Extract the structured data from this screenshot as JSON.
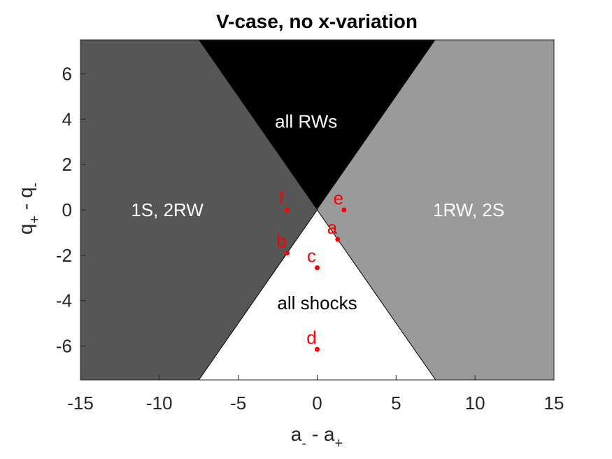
{
  "chart_data": {
    "type": "region",
    "title": "V-case, no x-variation",
    "xlabel": {
      "main": "a",
      "sub1": "-",
      "mid": " - a",
      "sub2": "+"
    },
    "ylabel": {
      "main": "q",
      "sub1": "+",
      "mid": " - q",
      "sub2": "-"
    },
    "xlim": [
      -15,
      15
    ],
    "ylim": [
      -7.5,
      7.5
    ],
    "xticks": [
      -15,
      -10,
      -5,
      0,
      5,
      10,
      15
    ],
    "yticks": [
      -6,
      -4,
      -2,
      0,
      2,
      4,
      6
    ],
    "regions": [
      {
        "label": "1S, 2RW",
        "label_at": [
          -9.5,
          0
        ],
        "label_color": "#ffffff",
        "fill": "#565656",
        "polygon": [
          [
            -15,
            7.5
          ],
          [
            -7.5,
            7.5
          ],
          [
            0,
            0
          ],
          [
            -7.5,
            -7.5
          ],
          [
            -15,
            -7.5
          ]
        ]
      },
      {
        "label": "all RWs",
        "label_at": [
          -0.7,
          3.9
        ],
        "label_color": "#ffffff",
        "fill": "#000000",
        "polygon": [
          [
            -7.5,
            7.5
          ],
          [
            7.5,
            7.5
          ],
          [
            0,
            0
          ]
        ]
      },
      {
        "label": "1RW, 2S",
        "label_at": [
          9.6,
          0
        ],
        "label_color": "#ffffff",
        "fill": "#9a9a9a",
        "polygon": [
          [
            7.5,
            7.5
          ],
          [
            15,
            7.5
          ],
          [
            15,
            -7.5
          ],
          [
            7.5,
            -7.5
          ],
          [
            0,
            0
          ]
        ]
      },
      {
        "label": "all shocks",
        "label_at": [
          0,
          -4.1
        ],
        "label_color": "#000000",
        "fill": "#ffffff",
        "polygon": [
          [
            0,
            0
          ],
          [
            7.5,
            -7.5
          ],
          [
            -7.5,
            -7.5
          ]
        ]
      }
    ],
    "points": [
      {
        "label": "a",
        "x": 1.3,
        "y": -1.3
      },
      {
        "label": "b",
        "x": -1.9,
        "y": -1.9
      },
      {
        "label": "c",
        "x": 0.0,
        "y": -2.55
      },
      {
        "label": "d",
        "x": 0.0,
        "y": -6.15
      },
      {
        "label": "e",
        "x": 1.7,
        "y": 0.0
      },
      {
        "label": "f",
        "x": -1.9,
        "y": 0.0
      }
    ],
    "point_color": "#ff0000"
  }
}
